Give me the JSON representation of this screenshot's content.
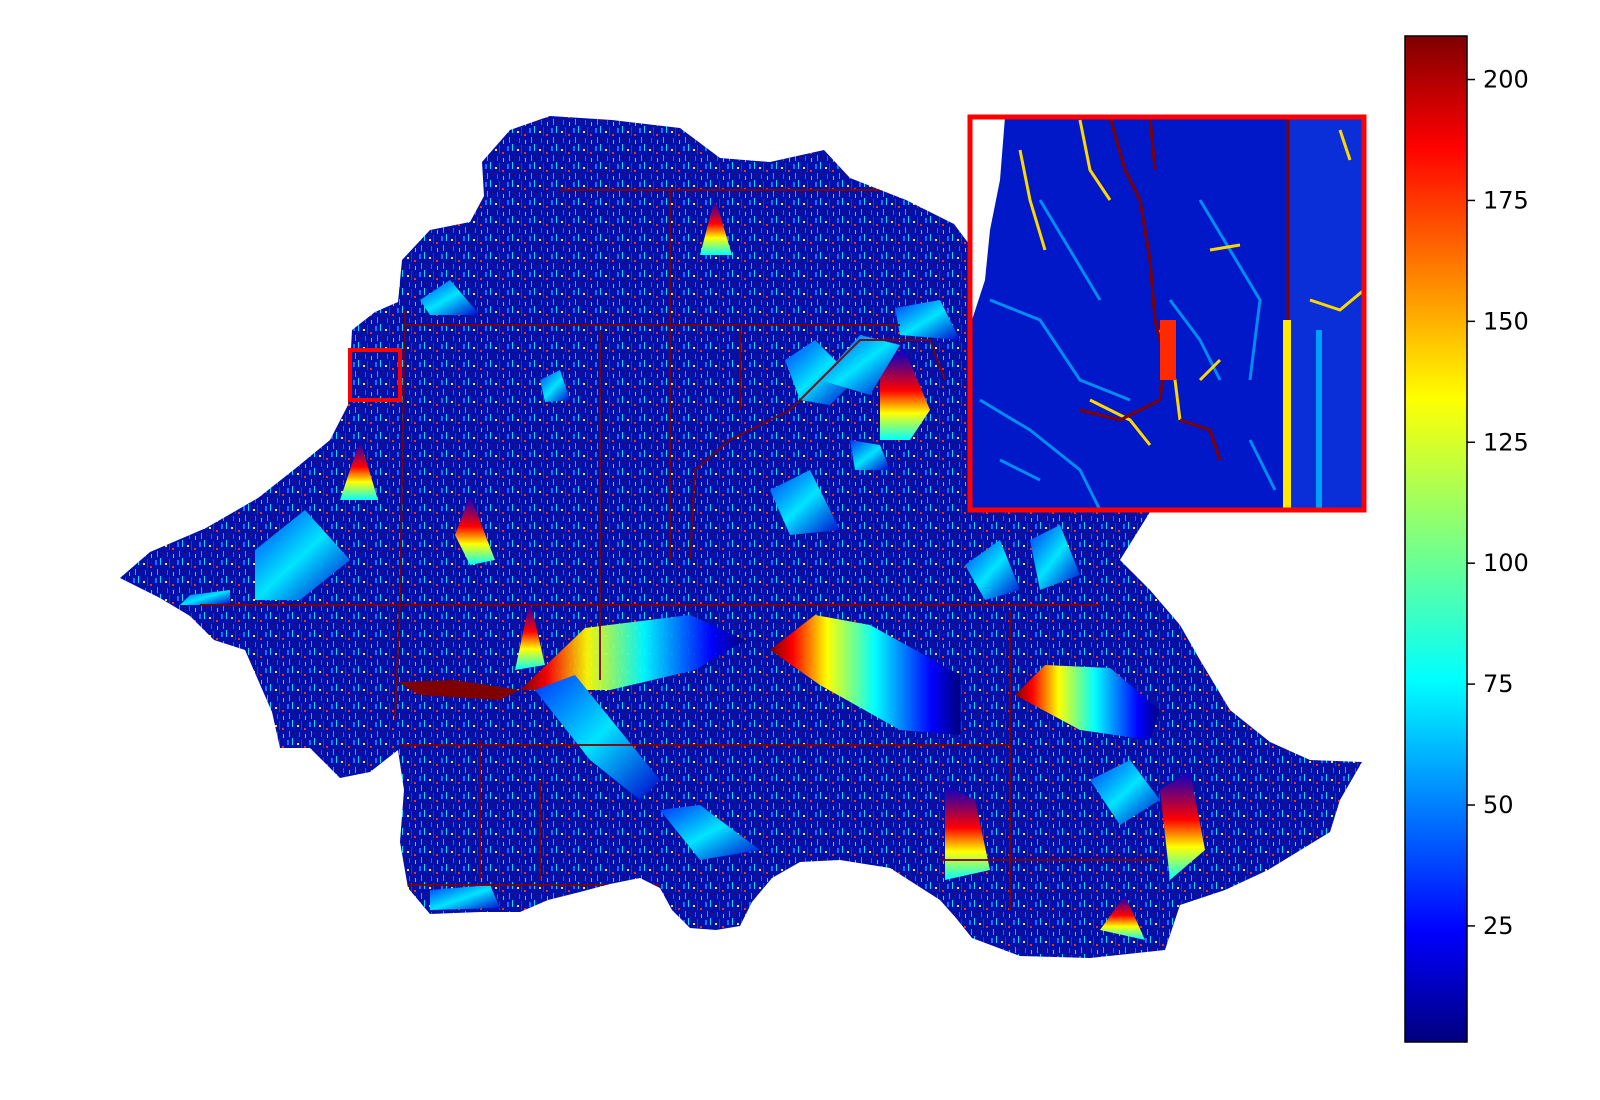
{
  "chart_data": {
    "type": "heatmap",
    "title": "",
    "xlabel": "",
    "ylabel": "",
    "colormap": "jet",
    "axes_visible": false,
    "grid": false,
    "colorbar": {
      "orientation": "vertical",
      "placement": "right",
      "range": [
        1,
        209
      ],
      "ticks": [
        {
          "value": 25,
          "label": "25"
        },
        {
          "value": 50,
          "label": "50"
        },
        {
          "value": 75,
          "label": "75"
        },
        {
          "value": 100,
          "label": "100"
        },
        {
          "value": 125,
          "label": "125"
        },
        {
          "value": 150,
          "label": "150"
        },
        {
          "value": 175,
          "label": "175"
        },
        {
          "value": 200,
          "label": "200"
        }
      ]
    },
    "inset": {
      "placement": "top-right",
      "frame_color": "#ff0000",
      "source_region_marked": true
    },
    "colors": {
      "background": "#ffffff",
      "low": "#00007f",
      "high": "#7f0000"
    }
  }
}
